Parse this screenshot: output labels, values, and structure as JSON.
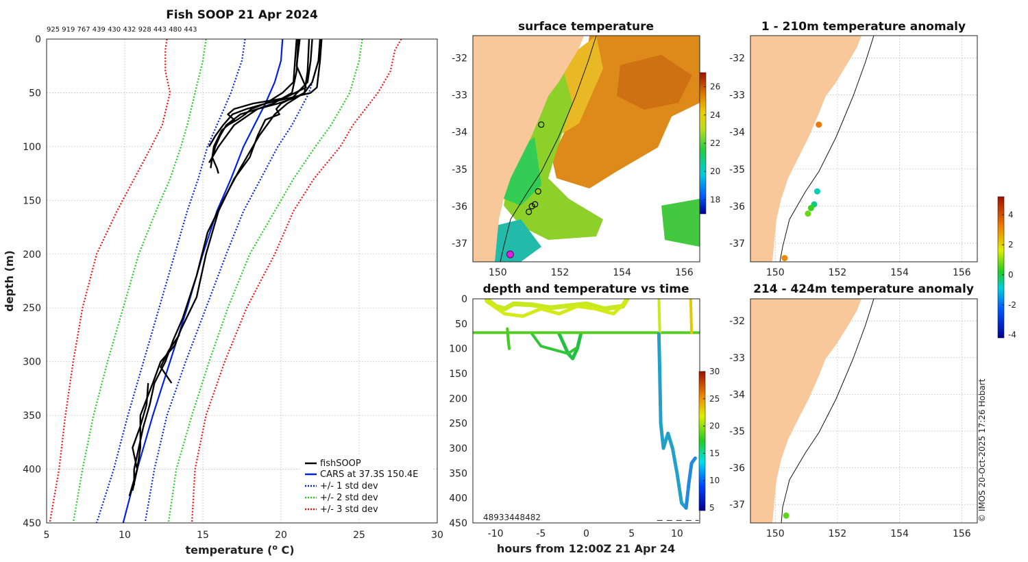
{
  "chart_data": [
    {
      "type": "line",
      "title": "Fish SOOP 21 Apr 2024",
      "subtitle": "925 919 767 439 430 432 928 443 480 443",
      "xlabel": "temperature (",
      "xlabel_sup": "o",
      "xlabel_end": " C)",
      "ylabel": "depth (m)",
      "xlim": [
        5,
        30
      ],
      "ylim": [
        450,
        0
      ],
      "xticks": [
        5,
        10,
        15,
        20,
        25,
        30
      ],
      "yticks": [
        0,
        50,
        100,
        150,
        200,
        250,
        300,
        350,
        400,
        450
      ],
      "grid": true,
      "legend_position": "bottom-right",
      "legend": [
        {
          "label": "fishSOOP",
          "color": "#000000",
          "style": "solid"
        },
        {
          "label": "CARS at 37.3S 150.4E",
          "color": "#0022dd",
          "style": "solid"
        },
        {
          "label": "+/- 1 std dev",
          "color": "#0022dd",
          "style": "dotted"
        },
        {
          "label": "+/- 2 std dev",
          "color": "#22cc22",
          "style": "dotted"
        },
        {
          "label": "+/- 3 std dev",
          "color": "#ee1111",
          "style": "dotted"
        }
      ],
      "series": [
        {
          "name": "CARS at 37.3S 150.4E",
          "color": "#0022dd",
          "style": "solid",
          "depth": [
            0,
            20,
            40,
            60,
            80,
            100,
            130,
            160,
            200,
            250,
            300,
            350,
            400,
            450
          ],
          "temp": [
            20.1,
            20.0,
            19.6,
            19.0,
            18.3,
            17.6,
            16.8,
            15.9,
            15.0,
            14.0,
            12.9,
            11.8,
            10.8,
            9.9
          ]
        },
        {
          "name": "+1 std dev",
          "color": "#0022dd",
          "style": "dotted",
          "depth": [
            0,
            20,
            50,
            80,
            100,
            130,
            160,
            200,
            250,
            300,
            350,
            400,
            450
          ],
          "temp": [
            22.5,
            22.4,
            21.8,
            20.7,
            19.8,
            18.7,
            17.6,
            16.5,
            15.2,
            13.9,
            12.7,
            11.9,
            11.3
          ]
        },
        {
          "name": "-1 std dev",
          "color": "#0022dd",
          "style": "dotted",
          "depth": [
            0,
            20,
            50,
            80,
            100,
            130,
            160,
            200,
            250,
            300,
            350,
            400,
            450
          ],
          "temp": [
            17.7,
            17.5,
            16.8,
            15.9,
            15.3,
            14.7,
            14.0,
            13.2,
            12.2,
            11.2,
            10.2,
            9.3,
            8.2
          ]
        },
        {
          "name": "+2 std dev",
          "color": "#22cc22",
          "style": "dotted",
          "depth": [
            0,
            20,
            50,
            80,
            100,
            130,
            160,
            200,
            250,
            300,
            350,
            400,
            450
          ],
          "temp": [
            25.2,
            25.0,
            24.4,
            23.2,
            22.2,
            20.8,
            19.6,
            18.0,
            16.6,
            15.4,
            14.3,
            13.3,
            12.8
          ]
        },
        {
          "name": "-2 std dev",
          "color": "#22cc22",
          "style": "dotted",
          "depth": [
            0,
            20,
            50,
            80,
            100,
            130,
            160,
            200,
            250,
            300,
            350,
            400,
            450
          ],
          "temp": [
            15.2,
            15.0,
            14.5,
            14.0,
            13.6,
            12.9,
            12.0,
            10.9,
            9.9,
            8.9,
            8.0,
            7.3,
            6.7
          ]
        },
        {
          "name": "+3 std dev",
          "color": "#ee1111",
          "style": "dotted",
          "depth": [
            0,
            10,
            30,
            50,
            80,
            100,
            130,
            160,
            200,
            250,
            300,
            350,
            400,
            450
          ],
          "temp": [
            27.7,
            27.3,
            27.0,
            26.2,
            24.6,
            23.8,
            22.1,
            20.8,
            19.6,
            17.8,
            16.4,
            15.2,
            14.5,
            14.3
          ]
        },
        {
          "name": "-3 std dev",
          "color": "#ee1111",
          "style": "dotted",
          "depth": [
            0,
            10,
            30,
            50,
            80,
            100,
            130,
            160,
            200,
            250,
            300,
            350,
            400,
            450
          ],
          "temp": [
            12.7,
            12.6,
            12.6,
            12.9,
            12.4,
            11.7,
            10.6,
            9.5,
            8.2,
            7.3,
            6.7,
            6.2,
            5.8,
            5.2
          ]
        }
      ],
      "fishsoop_profiles": [
        {
          "depth": [
            0,
            20,
            40,
            50,
            55,
            60,
            65,
            70,
            80,
            90,
            100,
            110,
            120,
            125
          ],
          "temp": [
            22.5,
            22.4,
            22.0,
            21.5,
            20.8,
            19.8,
            18.5,
            17.4,
            16.5,
            16.1,
            15.8,
            15.6,
            15.9,
            16.0
          ]
        },
        {
          "depth": [
            0,
            20,
            40,
            50,
            60,
            65,
            70,
            80,
            90,
            100
          ],
          "temp": [
            21.0,
            20.9,
            20.8,
            20.1,
            19.0,
            17.8,
            16.9,
            16.3,
            15.8,
            15.4
          ]
        },
        {
          "depth": [
            0,
            25,
            45,
            55,
            60,
            65,
            70,
            75,
            85,
            100,
            120
          ],
          "temp": [
            21.2,
            21.0,
            21.6,
            20.2,
            18.2,
            17.0,
            16.6,
            17.0,
            16.2,
            15.7,
            15.5
          ]
        },
        {
          "depth": [
            0,
            20,
            45,
            50,
            55,
            60,
            65,
            70,
            75,
            80
          ],
          "temp": [
            22.6,
            22.5,
            22.3,
            21.9,
            20.5,
            19.0,
            18.1,
            17.7,
            17.2,
            16.6
          ]
        },
        {
          "depth": [
            0,
            30,
            50,
            60,
            65,
            70,
            80,
            90,
            100,
            110,
            115
          ],
          "temp": [
            21.1,
            21.0,
            20.7,
            19.5,
            18.5,
            18.0,
            17.0,
            16.5,
            16.0,
            15.6,
            15.4
          ]
        },
        {
          "depth": [
            0,
            20,
            40,
            55,
            60,
            65,
            70,
            75,
            90,
            110,
            130,
            160,
            200,
            240,
            270,
            285,
            300,
            320,
            350,
            380,
            400,
            420
          ],
          "temp": [
            22.0,
            21.9,
            21.7,
            20.7,
            20.0,
            19.7,
            19.9,
            19.0,
            18.5,
            18.0,
            17.0,
            16.0,
            15.2,
            14.6,
            13.6,
            13.2,
            12.3,
            11.8,
            11.0,
            11.0,
            10.8,
            10.5
          ]
        },
        {
          "depth": [
            0,
            30,
            50,
            60,
            70,
            90,
            120,
            150,
            180,
            220,
            260,
            280,
            300,
            320,
            340,
            360,
            380,
            400,
            415
          ],
          "temp": [
            21.8,
            21.7,
            21.5,
            20.4,
            19.6,
            18.6,
            17.4,
            16.3,
            15.3,
            14.6,
            13.7,
            13.1,
            12.6,
            11.9,
            11.6,
            11.2,
            10.9,
            10.6,
            10.6
          ]
        },
        {
          "depth": [
            275,
            290,
            305,
            320
          ],
          "temp": [
            13.5,
            12.8,
            12.3,
            13.0
          ]
        },
        {
          "depth": [
            320,
            340,
            360,
            380,
            400,
            425
          ],
          "temp": [
            11.5,
            11.4,
            11.0,
            10.5,
            10.8,
            10.3
          ]
        }
      ]
    },
    {
      "type": "heatmap",
      "title": "surface temperature",
      "xlim": [
        149.2,
        156.5
      ],
      "ylim": [
        -37.5,
        -31.4
      ],
      "xticks": [
        150,
        152,
        154,
        156
      ],
      "yticks": [
        -32,
        -33,
        -34,
        -35,
        -36,
        -37
      ],
      "colorbar_range": [
        17,
        27
      ],
      "colorbar_ticks": [
        18,
        20,
        22,
        24,
        26
      ],
      "stations": [
        {
          "lon": 151.4,
          "lat": -33.8
        },
        {
          "lon": 151.3,
          "lat": -35.6
        },
        {
          "lon": 151.2,
          "lat": -35.95
        },
        {
          "lon": 151.1,
          "lat": -36.0
        },
        {
          "lon": 151.0,
          "lat": -36.15
        }
      ],
      "current_position": {
        "lon": 150.4,
        "lat": -37.3
      }
    },
    {
      "type": "scatter",
      "title": "depth and temperature vs time",
      "xlabel": "hours from 12:00Z 21 Apr 24",
      "xlim": [
        -12.5,
        12.5
      ],
      "ylim": [
        450,
        0
      ],
      "xticks": [
        -10,
        -5,
        0,
        5,
        10
      ],
      "yticks": [
        0,
        50,
        100,
        150,
        200,
        250,
        300,
        350,
        400,
        450
      ],
      "colorbar_range": [
        4.5,
        30
      ],
      "colorbar_ticks": [
        5,
        10,
        15,
        20,
        25,
        30
      ],
      "overlap_label": "48933448482"
    },
    {
      "type": "scatter",
      "title": "1 - 210m temperature anomaly",
      "xlim": [
        149.2,
        156.5
      ],
      "ylim": [
        -37.5,
        -31.4
      ],
      "xticks": [
        150,
        152,
        154,
        156
      ],
      "yticks": [
        -32,
        -33,
        -34,
        -35,
        -36,
        -37
      ],
      "points": [
        {
          "lon": 151.4,
          "lat": -33.8,
          "anomaly": 3.0
        },
        {
          "lon": 151.35,
          "lat": -35.6,
          "anomaly": -0.8
        },
        {
          "lon": 151.25,
          "lat": -35.95,
          "anomaly": -0.5
        },
        {
          "lon": 151.15,
          "lat": -36.05,
          "anomaly": 0.2
        },
        {
          "lon": 151.05,
          "lat": -36.2,
          "anomaly": 0.6
        },
        {
          "lon": 150.3,
          "lat": -37.4,
          "anomaly": 2.8
        }
      ]
    },
    {
      "type": "scatter",
      "title": "214 - 424m temperature anomaly",
      "xlim": [
        149.2,
        156.5
      ],
      "ylim": [
        -37.5,
        -31.4
      ],
      "xticks": [
        150,
        152,
        154,
        156
      ],
      "yticks": [
        -32,
        -33,
        -34,
        -35,
        -36,
        -37
      ],
      "colorbar_range": [
        -4.2,
        5.2
      ],
      "colorbar_ticks": [
        -4,
        -2,
        0,
        2,
        4
      ],
      "points": [
        {
          "lon": 150.35,
          "lat": -37.3,
          "anomaly": 0.5
        }
      ]
    }
  ],
  "credit": "© IMOS 20-Oct-2025 17:26 Hobart"
}
